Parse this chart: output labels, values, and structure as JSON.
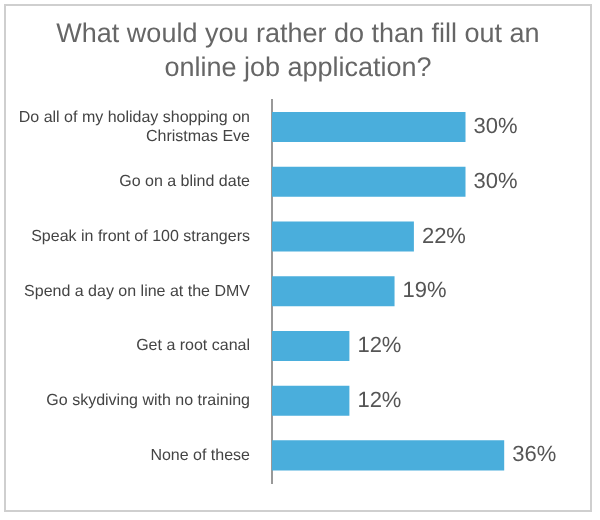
{
  "chart_data": {
    "type": "bar",
    "orientation": "horizontal",
    "title": "What would you rather do than fill out an online job application?",
    "categories": [
      "Do all of my holiday shopping on Christmas Eve",
      "Go on a blind date",
      "Speak in front of 100 strangers",
      "Spend a day on line at the DMV",
      "Get a root canal",
      "Go skydiving with no training",
      "None of these"
    ],
    "values": [
      30,
      30,
      22,
      19,
      12,
      12,
      36
    ],
    "value_labels": [
      "30%",
      "30%",
      "22%",
      "19%",
      "12%",
      "12%",
      "36%"
    ],
    "color": "#4aaedc"
  }
}
